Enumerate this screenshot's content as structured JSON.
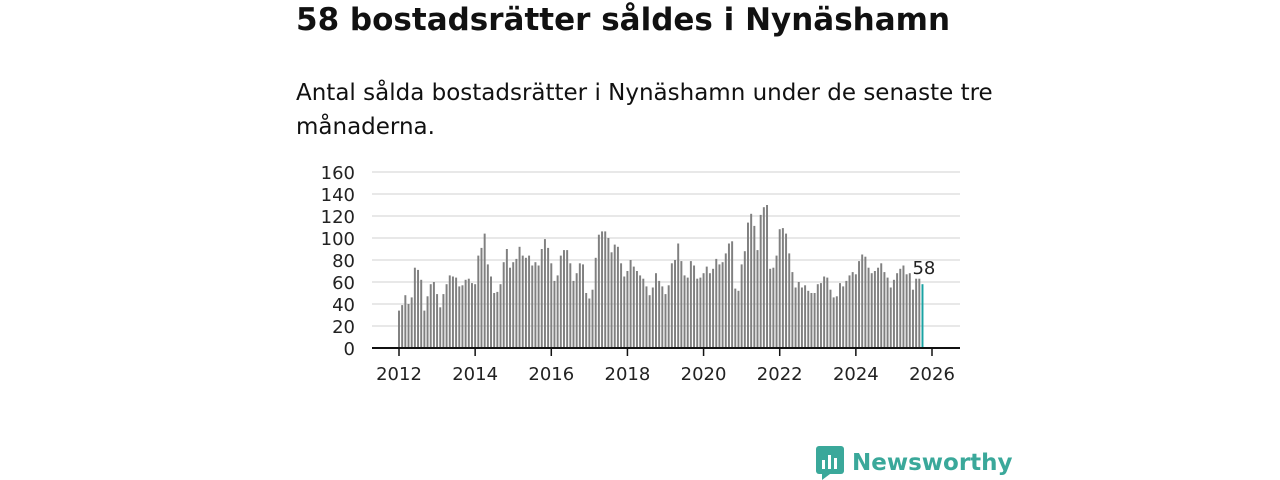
{
  "title": "58 bostadsrätter såldes i Nynäshamn",
  "subtitle": "Antal sålda bostadsrätter i Nynäshamn under de senaste tre månaderna.",
  "brand": {
    "name": "Newsworthy",
    "color": "#3aa89a",
    "icon": "bar-chart-logo-icon"
  },
  "chart_data": {
    "type": "bar",
    "title": "",
    "xlabel": "",
    "ylabel": "",
    "ylim": [
      0,
      160
    ],
    "yticks": [
      "0",
      "20",
      "40",
      "60",
      "80",
      "100",
      "120",
      "140",
      "160"
    ],
    "xticks": [
      "2012",
      "2014",
      "2016",
      "2018",
      "2020",
      "2022",
      "2024",
      "2026"
    ],
    "x_start": "2012-01",
    "x_end": "2026-01",
    "bar_color": "#808080",
    "highlight_color": "#1aa3a3",
    "highlight_label": "58",
    "values": [
      34,
      39,
      48,
      40,
      46,
      73,
      71,
      62,
      34,
      47,
      58,
      60,
      49,
      37,
      49,
      58,
      66,
      65,
      64,
      56,
      57,
      62,
      63,
      59,
      58,
      84,
      91,
      104,
      76,
      65,
      50,
      51,
      58,
      78,
      90,
      73,
      78,
      81,
      92,
      84,
      82,
      84,
      75,
      78,
      75,
      90,
      99,
      91,
      77,
      61,
      66,
      84,
      89,
      89,
      77,
      61,
      68,
      77,
      76,
      50,
      45,
      53,
      82,
      103,
      106,
      106,
      100,
      87,
      94,
      92,
      77,
      65,
      70,
      80,
      74,
      70,
      66,
      63,
      56,
      48,
      55,
      68,
      61,
      56,
      49,
      57,
      77,
      80,
      95,
      79,
      66,
      64,
      79,
      75,
      63,
      64,
      68,
      74,
      68,
      72,
      81,
      76,
      78,
      86,
      95,
      97,
      54,
      52,
      76,
      88,
      114,
      122,
      111,
      89,
      121,
      128,
      130,
      72,
      73,
      84,
      108,
      109,
      104,
      86,
      69,
      55,
      60,
      55,
      57,
      52,
      50,
      50,
      58,
      59,
      65,
      64,
      53,
      46,
      47,
      59,
      56,
      61,
      66,
      69,
      67,
      79,
      85,
      83,
      73,
      68,
      70,
      73,
      77,
      69,
      64,
      55,
      62,
      68,
      72,
      75,
      67,
      68,
      53,
      63,
      63,
      58
    ]
  }
}
